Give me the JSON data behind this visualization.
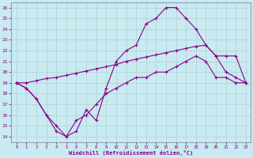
{
  "xlabel": "Windchill (Refroidissement éolien,°C)",
  "bg_color": "#c8eaf0",
  "line_color": "#880088",
  "grid_color": "#aacccc",
  "ylim": [
    13.5,
    26.5
  ],
  "xlim": [
    -0.5,
    23.5
  ],
  "yticks": [
    14,
    15,
    16,
    17,
    18,
    19,
    20,
    21,
    22,
    23,
    24,
    25,
    26
  ],
  "xticks": [
    0,
    1,
    2,
    3,
    4,
    5,
    6,
    7,
    8,
    9,
    10,
    11,
    12,
    13,
    14,
    15,
    16,
    17,
    18,
    19,
    20,
    21,
    22,
    23
  ],
  "line1_x": [
    0,
    1,
    2,
    3,
    4,
    5,
    6,
    7,
    8,
    9,
    10,
    11,
    12,
    13,
    14,
    15,
    16,
    17,
    18,
    19,
    20,
    21,
    22,
    23
  ],
  "line1_y": [
    19,
    18.5,
    17.5,
    16,
    15,
    14,
    14.5,
    16.5,
    15.5,
    18.5,
    21,
    22,
    22.5,
    24.5,
    25,
    26.0,
    26.0,
    25,
    24,
    22.5,
    21.5,
    20,
    19.5,
    19
  ],
  "line2_x": [
    0,
    1,
    2,
    3,
    4,
    5,
    6,
    7,
    8,
    9,
    10,
    11,
    12,
    13,
    14,
    15,
    16,
    17,
    18,
    19,
    20,
    21,
    22,
    23
  ],
  "line2_y": [
    19,
    19,
    19.2,
    19.4,
    19.5,
    19.7,
    19.9,
    20.1,
    20.3,
    20.5,
    20.7,
    21.0,
    21.2,
    21.4,
    21.6,
    21.8,
    22.0,
    22.2,
    22.4,
    22.5,
    21.5,
    21.5,
    21.5,
    19
  ],
  "line3_x": [
    0,
    1,
    2,
    3,
    4,
    5,
    6,
    7,
    8,
    9,
    10,
    11,
    12,
    13,
    14,
    15,
    16,
    17,
    18,
    19,
    20,
    21,
    22,
    23
  ],
  "line3_y": [
    19,
    18.5,
    17.5,
    16,
    14.5,
    14,
    15.5,
    16,
    17,
    18,
    18.5,
    19,
    19.5,
    19.5,
    20,
    20,
    20.5,
    21,
    21.5,
    21,
    19.5,
    19.5,
    19,
    19
  ]
}
